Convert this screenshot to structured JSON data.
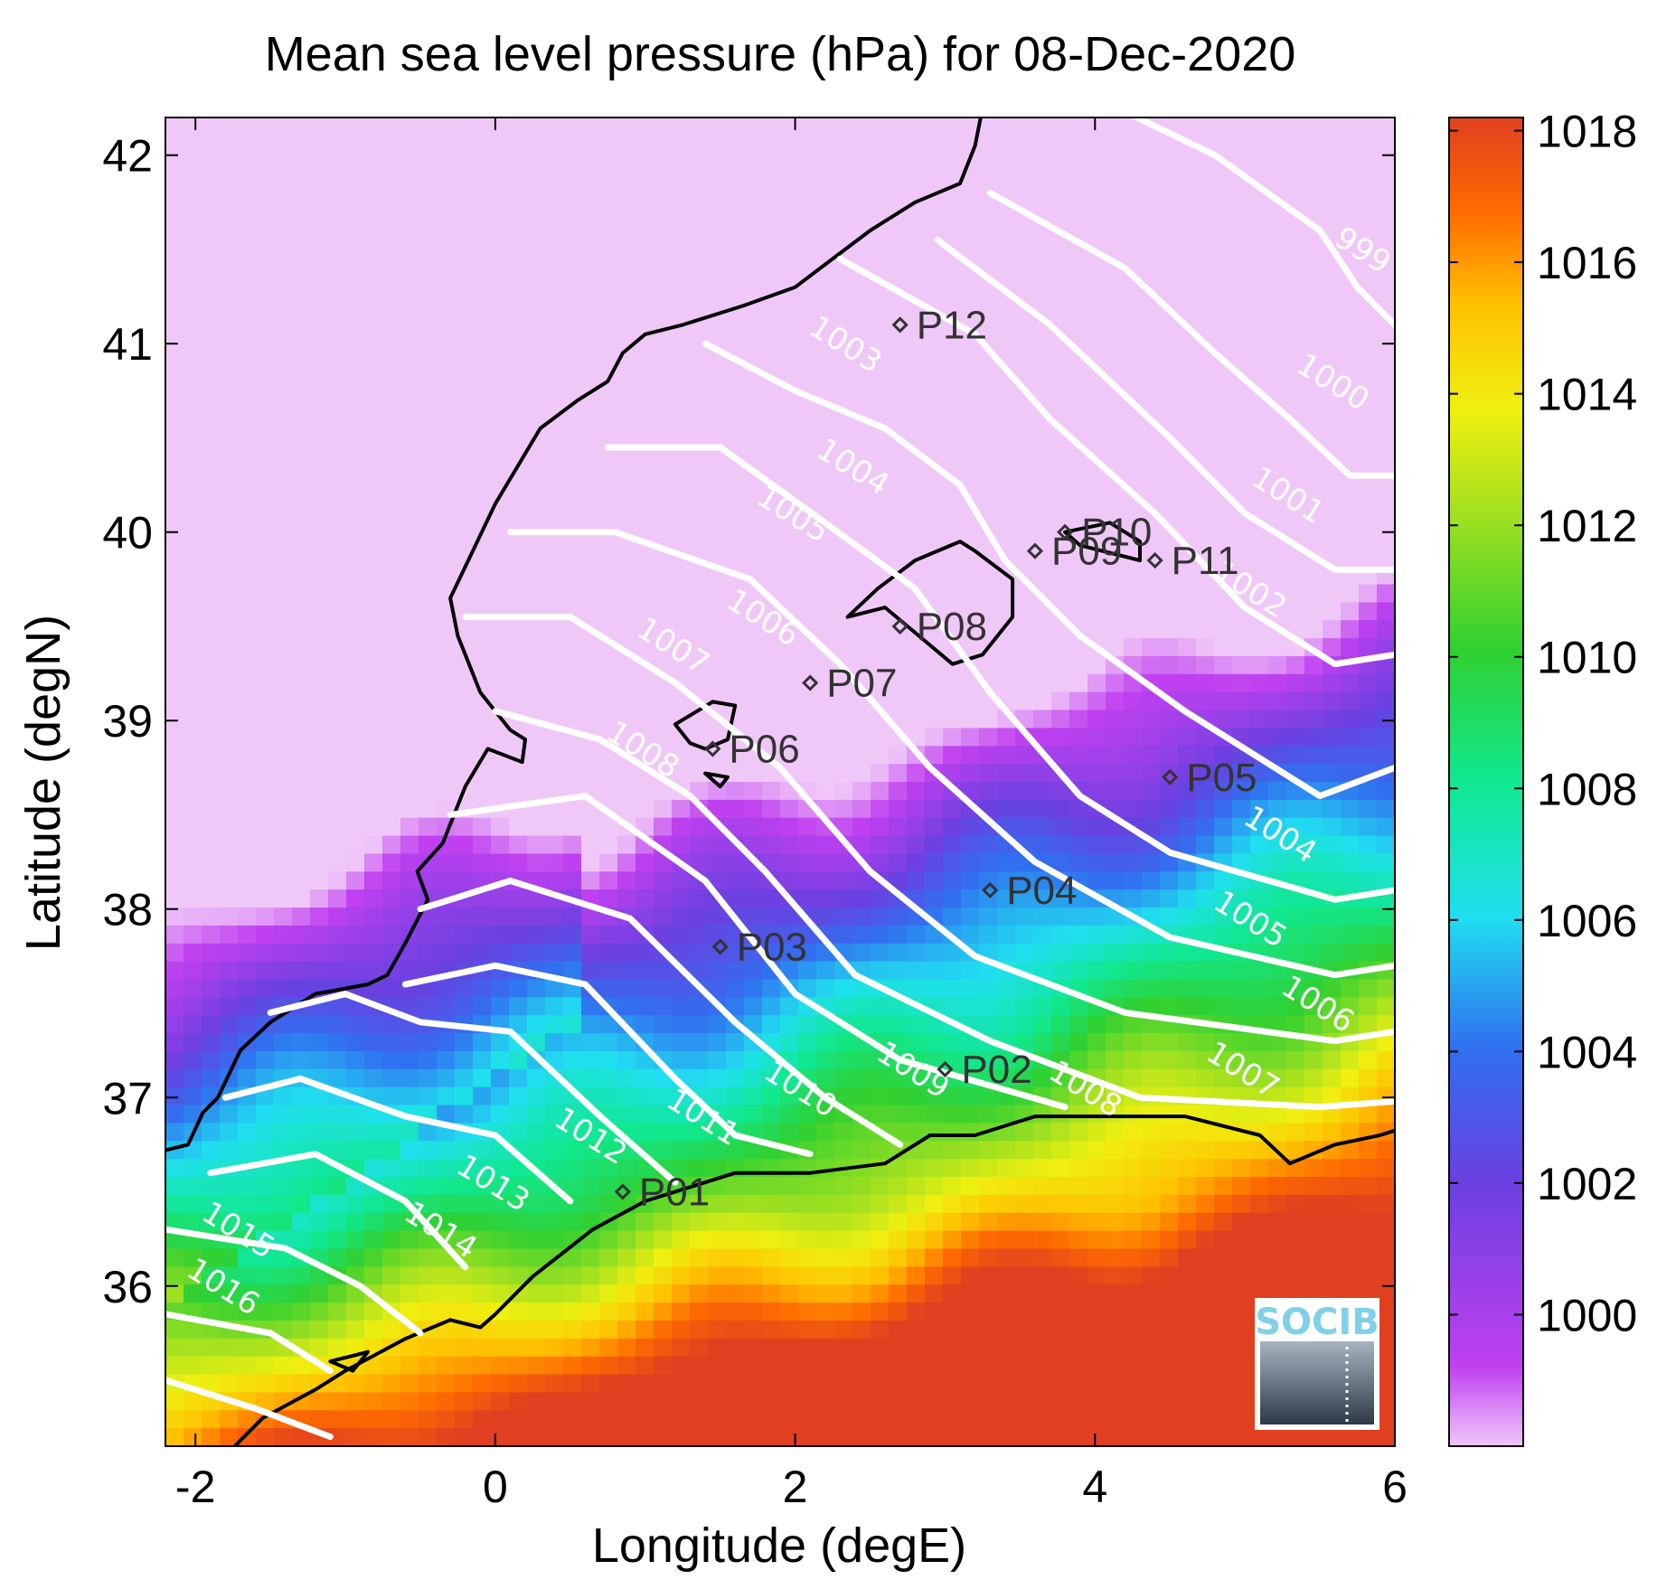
{
  "title": "Mean sea level pressure (hPa) for 08-Dec-2020",
  "xlabel": "Longitude (degE)",
  "ylabel": "Latitude (degN)",
  "x_ticks": [
    "-2",
    "0",
    "2",
    "4",
    "6"
  ],
  "y_ticks": [
    "42",
    "41",
    "40",
    "39",
    "38",
    "37",
    "36"
  ],
  "colorbar_ticks": [
    "1018",
    "1016",
    "1014",
    "1012",
    "1010",
    "1008",
    "1006",
    "1004",
    "1002",
    "1000"
  ],
  "logo": "SOCIB",
  "chart_data": {
    "type": "heatmap",
    "variable": "Mean sea level pressure",
    "units": "hPa",
    "date": "08-Dec-2020",
    "xlim": [
      -2.2,
      6.0
    ],
    "ylim": [
      35.15,
      42.2
    ],
    "clim": [
      998.0,
      1018.2
    ],
    "colormap": [
      "#f0c8f8",
      "#c040f0",
      "#6a40e0",
      "#3070f0",
      "#20e0f0",
      "#10e890",
      "#30d030",
      "#a0e020",
      "#f0f010",
      "#ffc000",
      "#ff6a00",
      "#e04020"
    ],
    "contour_levels": [
      999,
      1000,
      1001,
      1002,
      1003,
      1004,
      1005,
      1006,
      1007,
      1008,
      1009,
      1010,
      1011,
      1012,
      1013,
      1014,
      1015,
      1016
    ],
    "contour_labels": [
      {
        "text": "999",
        "lon": 5.75,
        "lat": 41.45
      },
      {
        "text": "1000",
        "lon": 5.55,
        "lat": 40.75
      },
      {
        "text": "1001",
        "lon": 5.25,
        "lat": 40.15
      },
      {
        "text": "1002",
        "lon": 5.0,
        "lat": 39.65
      },
      {
        "text": "1003",
        "lon": 2.3,
        "lat": 40.95
      },
      {
        "text": "1004",
        "lon": 2.35,
        "lat": 40.3
      },
      {
        "text": "1005",
        "lon": 1.95,
        "lat": 40.05
      },
      {
        "text": "1006",
        "lon": 1.75,
        "lat": 39.5
      },
      {
        "text": "1007",
        "lon": 1.15,
        "lat": 39.35
      },
      {
        "text": "1008",
        "lon": 0.95,
        "lat": 38.8
      },
      {
        "text": "1004",
        "lon": 5.2,
        "lat": 38.35
      },
      {
        "text": "1005",
        "lon": 5.0,
        "lat": 37.9
      },
      {
        "text": "1006",
        "lon": 5.45,
        "lat": 37.45
      },
      {
        "text": "1007",
        "lon": 4.95,
        "lat": 37.1
      },
      {
        "text": "1008",
        "lon": 3.9,
        "lat": 37.0
      },
      {
        "text": "1009",
        "lon": 2.75,
        "lat": 37.1
      },
      {
        "text": "1010",
        "lon": 2.0,
        "lat": 37.0
      },
      {
        "text": "1011",
        "lon": 1.35,
        "lat": 36.85
      },
      {
        "text": "1012",
        "lon": 0.6,
        "lat": 36.75
      },
      {
        "text": "1013",
        "lon": -0.05,
        "lat": 36.5
      },
      {
        "text": "1014",
        "lon": -0.4,
        "lat": 36.25
      },
      {
        "text": "1015",
        "lon": -1.75,
        "lat": 36.25
      },
      {
        "text": "1016",
        "lon": -1.85,
        "lat": 35.95
      }
    ],
    "stations": [
      {
        "name": "P01",
        "lon": 0.85,
        "lat": 36.5
      },
      {
        "name": "P02",
        "lon": 3.0,
        "lat": 37.15
      },
      {
        "name": "P03",
        "lon": 1.5,
        "lat": 37.8
      },
      {
        "name": "P04",
        "lon": 3.3,
        "lat": 38.1
      },
      {
        "name": "P05",
        "lon": 4.5,
        "lat": 38.7
      },
      {
        "name": "P06",
        "lon": 1.45,
        "lat": 38.85
      },
      {
        "name": "P07",
        "lon": 2.1,
        "lat": 39.2
      },
      {
        "name": "P08",
        "lon": 2.7,
        "lat": 39.5
      },
      {
        "name": "P09",
        "lon": 3.6,
        "lat": 39.9
      },
      {
        "name": "P10",
        "lon": 3.8,
        "lat": 40.0
      },
      {
        "name": "P11",
        "lon": 4.4,
        "lat": 39.85
      },
      {
        "name": "P12",
        "lon": 2.7,
        "lat": 41.1
      }
    ]
  }
}
